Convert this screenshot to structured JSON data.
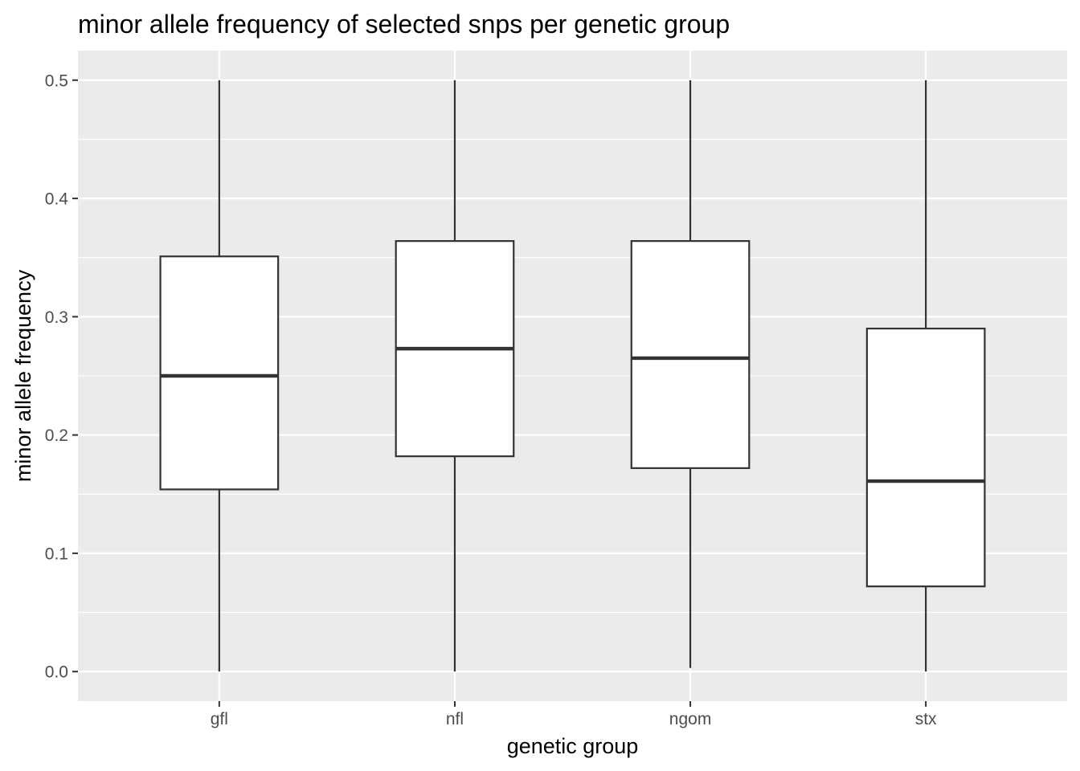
{
  "chart_data": {
    "type": "boxplot",
    "title": "minor allele frequency of selected snps per genetic group",
    "xlabel": "genetic group",
    "ylabel": "minor allele frequency",
    "categories": [
      "gfl",
      "nfl",
      "ngom",
      "stx"
    ],
    "boxes": [
      {
        "category": "gfl",
        "whisker_low": 0.0,
        "q1": 0.154,
        "median": 0.25,
        "q3": 0.351,
        "whisker_high": 0.5
      },
      {
        "category": "nfl",
        "whisker_low": 0.0,
        "q1": 0.182,
        "median": 0.273,
        "q3": 0.364,
        "whisker_high": 0.5
      },
      {
        "category": "ngom",
        "whisker_low": 0.003,
        "q1": 0.172,
        "median": 0.265,
        "q3": 0.364,
        "whisker_high": 0.5
      },
      {
        "category": "stx",
        "whisker_low": 0.0,
        "q1": 0.072,
        "median": 0.161,
        "q3": 0.29,
        "whisker_high": 0.5
      }
    ],
    "ylim": [
      -0.025,
      0.525
    ],
    "yticks": [
      0.0,
      0.1,
      0.2,
      0.3,
      0.4,
      0.5
    ],
    "ytick_labels": [
      "0.0",
      "0.1",
      "0.2",
      "0.3",
      "0.4",
      "0.5"
    ],
    "grid": true,
    "colors": {
      "panel_background": "#ebebeb",
      "grid_major": "#ffffff",
      "grid_minor": "#f5f5f5",
      "box_fill": "#ffffff",
      "box_stroke": "#333333",
      "tick_mark": "#333333"
    }
  }
}
